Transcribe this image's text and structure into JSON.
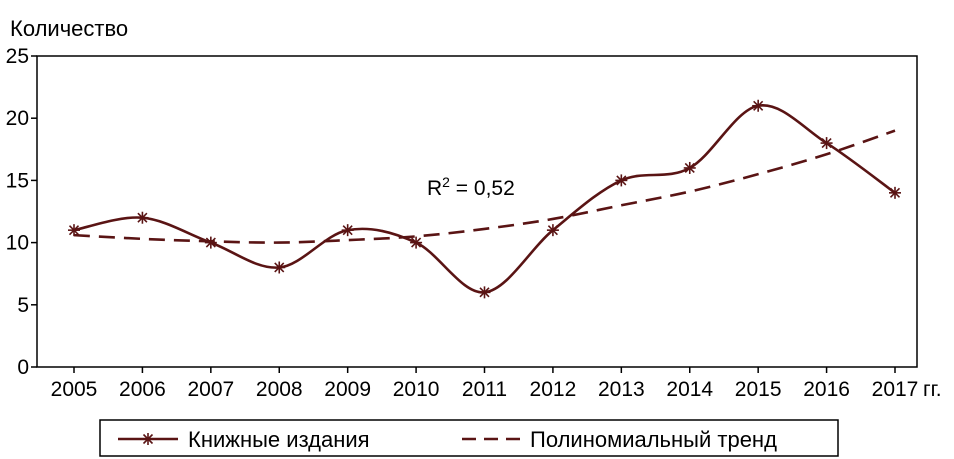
{
  "chart_data": {
    "type": "line",
    "ylabel": "Количество",
    "x_unit": "гг.",
    "categories": [
      "2005",
      "2006",
      "2007",
      "2008",
      "2009",
      "2010",
      "2011",
      "2012",
      "2013",
      "2014",
      "2015",
      "2016",
      "2017"
    ],
    "ylim": [
      0,
      25
    ],
    "yticks": [
      0,
      5,
      10,
      15,
      20,
      25
    ],
    "grid": false,
    "legend_position": "bottom",
    "series": [
      {
        "name": "Книжные издания",
        "style": "solid-asterisk",
        "color": "#5a1414",
        "values": [
          11,
          12,
          10,
          8,
          11,
          10,
          6,
          11,
          15,
          16,
          21,
          18,
          14
        ]
      },
      {
        "name": "Полиномиальный тренд",
        "style": "dashed",
        "color": "#5a1414",
        "values": [
          10.6,
          10.3,
          10.1,
          10.0,
          10.2,
          10.5,
          11.1,
          11.9,
          13.0,
          14.1,
          15.5,
          17.1,
          19.0
        ]
      }
    ],
    "annotation": {
      "text": "R",
      "superscript": "2",
      "rest": " = 0,52"
    }
  }
}
